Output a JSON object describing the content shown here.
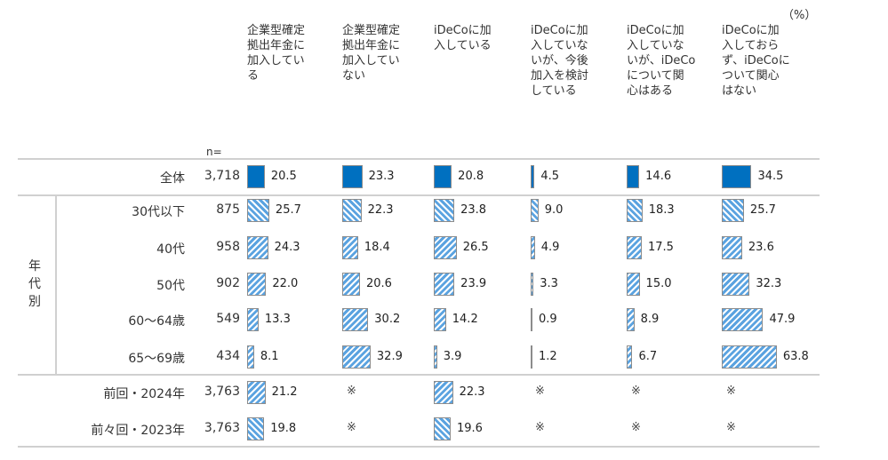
{
  "unit": "（%）",
  "n_label": "n=",
  "group_label": "年\n代\n別",
  "colors": {
    "solid": "#0070C0",
    "stripe": "#5ba3e0"
  },
  "chart_data": {
    "type": "table",
    "columns": [
      "企業型確定\n拠出年金に\n加入してい\nる",
      "企業型確定\n拠出年金に\n加入してい\nない",
      "iDeCoに加\n入している",
      "iDeCoに加\n入していな\nいが、今後\n加入を検討\nしている",
      "iDeCoに加\n入していな\nいが、iDeCo\nについて関\n心はある",
      "iDeCoに加\n入しておら\nず、iDeCoに\nついて関心\nはない"
    ],
    "rows": [
      {
        "label": "全体",
        "n": "3,718",
        "style": "solid",
        "values": [
          20.5,
          23.3,
          20.8,
          4.5,
          14.6,
          34.5
        ]
      },
      {
        "label": "30代以下",
        "n": "875",
        "style": "zig",
        "values": [
          25.7,
          22.3,
          23.8,
          9.0,
          18.3,
          25.7
        ]
      },
      {
        "label": "40代",
        "n": "958",
        "style": "stripe",
        "values": [
          24.3,
          18.4,
          26.5,
          4.9,
          17.5,
          23.6
        ]
      },
      {
        "label": "50代",
        "n": "902",
        "style": "stripe",
        "values": [
          22.0,
          20.6,
          23.9,
          3.3,
          15.0,
          32.3
        ]
      },
      {
        "label": "60～64歳",
        "n": "549",
        "style": "stripe",
        "values": [
          13.3,
          30.2,
          14.2,
          0.9,
          8.9,
          47.9
        ]
      },
      {
        "label": "65～69歳",
        "n": "434",
        "style": "stripe",
        "values": [
          8.1,
          32.9,
          3.9,
          1.2,
          6.7,
          63.8
        ]
      },
      {
        "label": "前回・2024年",
        "n": "3,763",
        "style": "stripe",
        "values": [
          21.2,
          null,
          22.3,
          null,
          null,
          null
        ]
      },
      {
        "label": "前々回・2023年",
        "n": "3,763",
        "style": "zig",
        "values": [
          19.8,
          null,
          19.6,
          null,
          null,
          null
        ]
      }
    ],
    "missing_mark": "※"
  }
}
